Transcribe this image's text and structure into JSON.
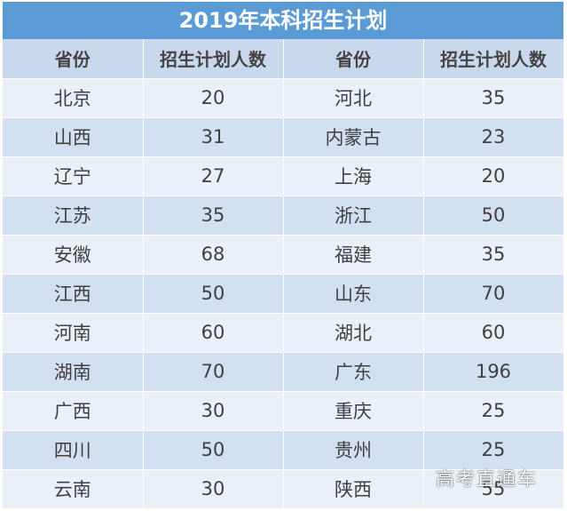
{
  "title": "2019年本科招生计划",
  "headers": [
    "省份",
    "招生计划人数",
    "省份",
    "招生计划人数"
  ],
  "rows": [
    [
      "北京",
      "20",
      "河北",
      "35"
    ],
    [
      "山西",
      "31",
      "内蒙古",
      "23"
    ],
    [
      "辽宁",
      "27",
      "上海",
      "20"
    ],
    [
      "江苏",
      "35",
      "浙江",
      "50"
    ],
    [
      "安徽",
      "68",
      "福建",
      "35"
    ],
    [
      "江西",
      "50",
      "山东",
      "70"
    ],
    [
      "河南",
      "60",
      "湖北",
      "60"
    ],
    [
      "湖南",
      "70",
      "广东",
      "196"
    ],
    [
      "广西",
      "30",
      "重庆",
      "25"
    ],
    [
      "四川",
      "50",
      "贵州",
      "25"
    ],
    [
      "云南",
      "30",
      "陕西",
      "55"
    ]
  ],
  "watermark": "高考直通车",
  "colors": {
    "title_bg": "#5b9bd5",
    "header_bg": "#c9d8ec",
    "row_light": "#eaf0f8",
    "row_dark": "#d3e0f1"
  }
}
